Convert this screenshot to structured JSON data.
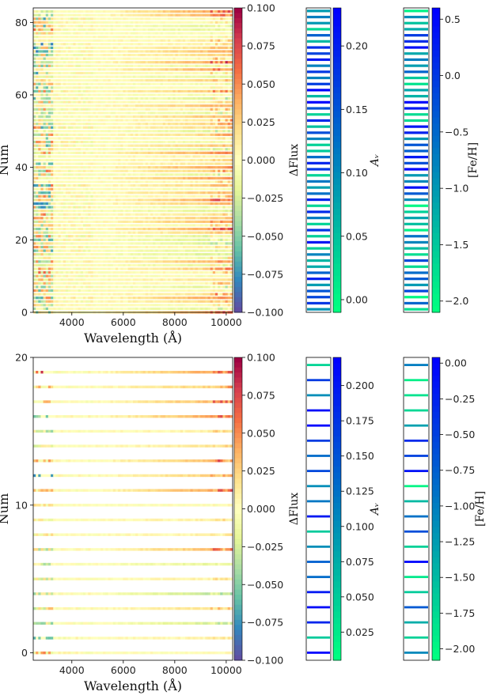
{
  "chart_data": [
    {
      "type": "heatmap",
      "panel": "top",
      "xlabel": "Wavelength (Å)",
      "ylabel": "Num",
      "xlim": [
        2500,
        10250
      ],
      "ylim": [
        0,
        84
      ],
      "x_ticks": [
        4000,
        6000,
        8000,
        10000
      ],
      "x_tick_labels": [
        "4000",
        "6000",
        "8000",
        "10000"
      ],
      "y_ticks": [
        0,
        20,
        40,
        60,
        80
      ],
      "y_tick_labels": [
        "0",
        "20",
        "40",
        "60",
        "80"
      ],
      "n_rows": 84,
      "colorbar": {
        "label": "ΔFlux",
        "range": [
          -0.1,
          0.1
        ],
        "ticks": [
          0.1,
          0.075,
          0.05,
          0.025,
          0.0,
          -0.025,
          -0.05,
          -0.075,
          -0.1
        ],
        "tick_labels": [
          "0.100",
          "0.075",
          "0.050",
          "0.025",
          "0.000",
          "−0.025",
          "−0.050",
          "−0.075",
          "−0.100"
        ]
      },
      "av_strip": {
        "label": "A_v",
        "range": [
          -0.01,
          0.23
        ],
        "ticks": [
          0.2,
          0.15,
          0.1,
          0.05,
          0.0
        ],
        "tick_labels": [
          "0.20",
          "0.15",
          "0.10",
          "0.05",
          "0.00"
        ]
      },
      "feh_strip": {
        "label": "[Fe/H]",
        "range": [
          -2.1,
          0.6
        ],
        "ticks": [
          0.5,
          0.0,
          -0.5,
          -1.0,
          -1.5,
          -2.0
        ],
        "tick_labels": [
          "0.5",
          "0.0",
          "−0.5",
          "−1.0",
          "−1.5",
          "−2.0"
        ]
      }
    },
    {
      "type": "heatmap",
      "panel": "bottom",
      "xlabel": "Wavelength (Å)",
      "ylabel": "Num",
      "xlim": [
        2500,
        10250
      ],
      "ylim": [
        -0.5,
        20
      ],
      "x_ticks": [
        4000,
        6000,
        8000,
        10000
      ],
      "x_tick_labels": [
        "4000",
        "6000",
        "8000",
        "10000"
      ],
      "y_ticks": [
        0,
        10,
        20
      ],
      "y_tick_labels": [
        "0",
        "10",
        "20"
      ],
      "n_rows": 20,
      "row_patterns": [
        {
          "row": 0,
          "blue": 0.25,
          "red": 0.55,
          "red_end": 0.1,
          "slope": 0.0
        },
        {
          "row": 1,
          "blue": 0.9,
          "red": 0.0,
          "red_end": 0.1,
          "slope": 0.1
        },
        {
          "row": 2,
          "blue": 0.5,
          "red": 0.2,
          "red_end": 0.4,
          "slope": -0.3
        },
        {
          "row": 3,
          "blue": 0.4,
          "red": 0.35,
          "red_end": 0.3,
          "slope": 0.2
        },
        {
          "row": 4,
          "blue": 0.6,
          "red": 0.15,
          "red_end": 0.4,
          "slope": -0.4
        },
        {
          "row": 5,
          "blue": 0.35,
          "red": 0.2,
          "red_end": 0.2,
          "slope": 0.1
        },
        {
          "row": 6,
          "blue": 0.5,
          "red": 0.1,
          "red_end": 0.2,
          "slope": -0.2
        },
        {
          "row": 7,
          "blue": 0.45,
          "red": 0.3,
          "red_end": 0.6,
          "slope": 0.4
        },
        {
          "row": 8,
          "blue": 0.2,
          "red": 0.3,
          "red_end": 0.2,
          "slope": 0.1
        },
        {
          "row": 9,
          "blue": 0.15,
          "red": 0.25,
          "red_end": 0.2,
          "slope": 0.1
        },
        {
          "row": 10,
          "blue": 0.1,
          "red": 0.3,
          "red_end": 0.1,
          "slope": 0.0
        },
        {
          "row": 11,
          "blue": 0.2,
          "red": 0.45,
          "red_end": 0.6,
          "slope": 0.5
        },
        {
          "row": 12,
          "blue": 0.8,
          "red": 0.0,
          "red_end": 0.3,
          "slope": 0.3
        },
        {
          "row": 13,
          "blue": 0.15,
          "red": 0.5,
          "red_end": 0.7,
          "slope": 0.4
        },
        {
          "row": 14,
          "blue": 0.3,
          "red": 0.15,
          "red_end": 0.2,
          "slope": 0.2
        },
        {
          "row": 15,
          "blue": 0.5,
          "red": 0.1,
          "red_end": 0.3,
          "slope": 0.1
        },
        {
          "row": 16,
          "blue": 0.85,
          "red": 0.0,
          "red_end": 0.5,
          "slope": 0.5
        },
        {
          "row": 17,
          "blue": 0.1,
          "red": 0.5,
          "red_end": 0.6,
          "slope": 0.4
        },
        {
          "row": 18,
          "blue": 0.1,
          "red": 0.45,
          "red_end": 0.4,
          "slope": 0.3
        },
        {
          "row": 19,
          "blue": 0.0,
          "red": 0.95,
          "red_end": 0.5,
          "slope": 0.5
        }
      ],
      "av_values": [
        0.23,
        0.05,
        0.19,
        0.21,
        0.2,
        0.13,
        0.14,
        0.1,
        0.05,
        0.2,
        0.12,
        0.1,
        0.16,
        0.13,
        0.17,
        0.22,
        0.21,
        0.1,
        0.17,
        0.04
      ],
      "feh_values": [
        -1.1,
        -1.7,
        -1.4,
        -0.7,
        -1.65,
        -1.9,
        0.0,
        -1.7,
        -0.6,
        -0.9,
        -1.5,
        -2.0,
        -0.1,
        -0.5,
        -0.3,
        -1.3,
        -1.75,
        -1.85,
        -1.95,
        -1.0
      ],
      "colorbar": {
        "label": "ΔFlux",
        "range": [
          -0.1,
          0.1
        ],
        "ticks": [
          0.1,
          0.075,
          0.05,
          0.025,
          0.0,
          -0.025,
          -0.05,
          -0.075,
          -0.1
        ],
        "tick_labels": [
          "0.100",
          "0.075",
          "0.050",
          "0.025",
          "0.000",
          "−0.025",
          "−0.050",
          "−0.075",
          "−0.100"
        ]
      },
      "av_strip": {
        "label": "A_v",
        "range": [
          0.005,
          0.22
        ],
        "ticks": [
          0.2,
          0.175,
          0.15,
          0.125,
          0.1,
          0.075,
          0.05,
          0.025
        ],
        "tick_labels": [
          "0.200",
          "0.175",
          "0.150",
          "0.125",
          "0.100",
          "0.075",
          "0.050",
          "0.025"
        ]
      },
      "feh_strip": {
        "label": "[Fe/H]",
        "range": [
          -2.08,
          0.04
        ],
        "ticks": [
          0.0,
          -0.25,
          -0.5,
          -0.75,
          -1.0,
          -1.25,
          -1.5,
          -1.75,
          -2.0
        ],
        "tick_labels": [
          "0.00",
          "−0.25",
          "−0.50",
          "−0.75",
          "−1.00",
          "−1.25",
          "−1.50",
          "−1.75",
          "−2.00"
        ]
      }
    }
  ],
  "colors": {
    "av_low": "#00ff80",
    "av_high": "#0000ff",
    "spectral": [
      "#5e4fa2",
      "#3288bd",
      "#66c2a5",
      "#abdda4",
      "#e6f598",
      "#ffffbf",
      "#fee08b",
      "#fdae61",
      "#f46d43",
      "#d53e4f",
      "#9e0142"
    ]
  }
}
